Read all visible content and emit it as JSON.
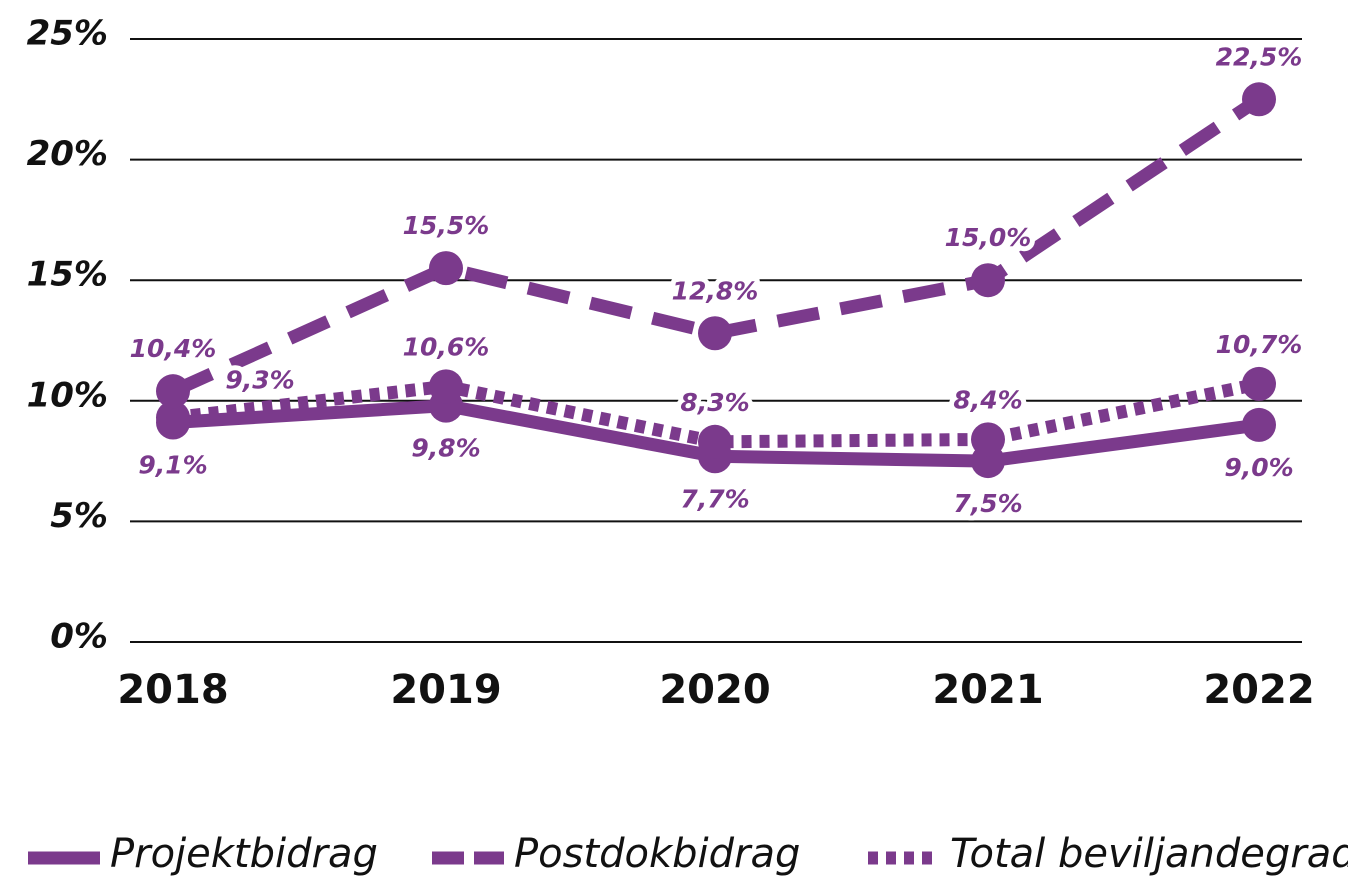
{
  "chart_data": {
    "type": "line",
    "categories": [
      "2018",
      "2019",
      "2020",
      "2021",
      "2022"
    ],
    "series": [
      {
        "name": "Projektbidrag",
        "color": "#7b3a8c",
        "style": "solid",
        "values": [
          9.1,
          9.8,
          7.7,
          7.5,
          9.0
        ],
        "value_labels": [
          "9,1%",
          "9,8%",
          "7,7%",
          "7,5%",
          "9,0%"
        ]
      },
      {
        "name": "Postdokbidrag",
        "color": "#7b3a8c",
        "style": "dashed",
        "values": [
          10.4,
          15.5,
          12.8,
          15.0,
          22.5
        ],
        "value_labels": [
          "10,4%",
          "15,5%",
          "12,8%",
          "15,0%",
          "22,5%"
        ]
      },
      {
        "name": "Total beviljandegrad",
        "color": "#7b3a8c",
        "style": "dotted",
        "values": [
          9.3,
          10.6,
          8.3,
          8.4,
          10.7
        ],
        "value_labels": [
          "9,3%",
          "10,6%",
          "8,3%",
          "8,4%",
          "10,7%"
        ]
      }
    ],
    "ylim": [
      0,
      25
    ],
    "yticks": [
      {
        "value": 0,
        "label": "0%"
      },
      {
        "value": 5,
        "label": "5%"
      },
      {
        "value": 10,
        "label": "10%"
      },
      {
        "value": 15,
        "label": "15%"
      },
      {
        "value": 20,
        "label": "20%"
      },
      {
        "value": 25,
        "label": "25%"
      }
    ],
    "grid": true,
    "legend": "bottom"
  }
}
